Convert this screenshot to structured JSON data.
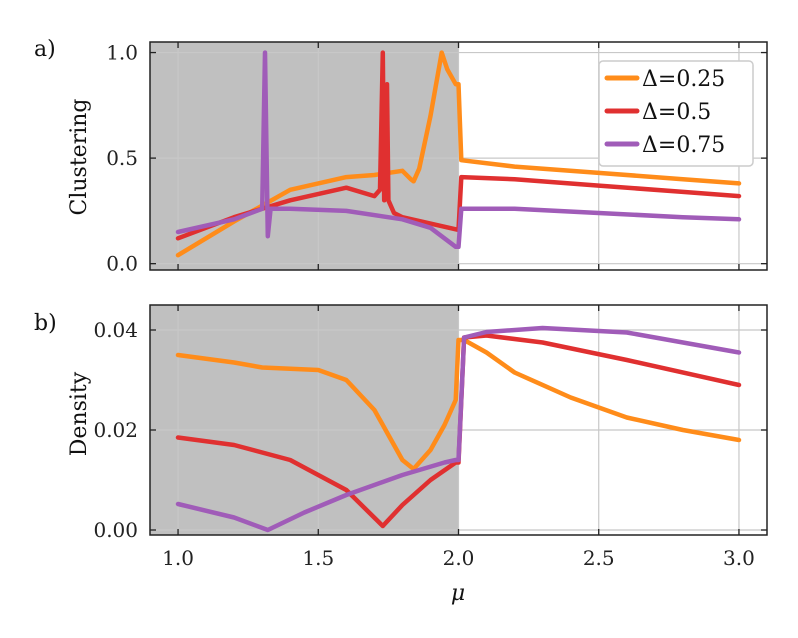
{
  "chart_data": [
    {
      "type": "line",
      "panel_label": "a)",
      "ylabel": "Clustering",
      "xlim": [
        0.9,
        3.1
      ],
      "ylim": [
        -0.03,
        1.05
      ],
      "xticks": [
        1.0,
        1.5,
        2.0,
        2.5,
        3.0
      ],
      "yticks": [
        0.0,
        0.5,
        1.0
      ],
      "ytick_labels": [
        "0.0",
        "0.5",
        "1.0"
      ],
      "shaded_region": [
        0.9,
        2.0
      ],
      "grid": true,
      "legend_position": "top-right",
      "series": [
        {
          "name": "Δ=0.25",
          "color": "#ff8c1a",
          "x": [
            1.0,
            1.2,
            1.4,
            1.6,
            1.7,
            1.8,
            1.83,
            1.84,
            1.86,
            1.9,
            1.94,
            1.96,
            1.99,
            2.0,
            2.01,
            2.2,
            2.5,
            2.8,
            3.0
          ],
          "y": [
            0.04,
            0.2,
            0.35,
            0.41,
            0.42,
            0.44,
            0.4,
            0.39,
            0.45,
            0.7,
            1.0,
            0.92,
            0.85,
            0.85,
            0.49,
            0.46,
            0.43,
            0.4,
            0.38
          ]
        },
        {
          "name": "Δ=0.5",
          "color": "#e03030",
          "x": [
            1.0,
            1.2,
            1.4,
            1.6,
            1.7,
            1.72,
            1.73,
            1.735,
            1.745,
            1.75,
            1.77,
            1.8,
            2.0,
            2.01,
            2.2,
            2.5,
            2.8,
            3.0
          ],
          "y": [
            0.12,
            0.22,
            0.3,
            0.36,
            0.32,
            0.35,
            1.0,
            0.3,
            0.85,
            0.3,
            0.24,
            0.22,
            0.16,
            0.41,
            0.4,
            0.37,
            0.34,
            0.32
          ]
        },
        {
          "name": "Δ=0.75",
          "color": "#a05cb8",
          "x": [
            1.0,
            1.2,
            1.3,
            1.31,
            1.32,
            1.33,
            1.4,
            1.6,
            1.8,
            1.9,
            1.99,
            2.0,
            2.01,
            2.2,
            2.5,
            2.8,
            3.0
          ],
          "y": [
            0.15,
            0.21,
            0.26,
            1.0,
            0.13,
            0.26,
            0.26,
            0.25,
            0.21,
            0.17,
            0.08,
            0.08,
            0.26,
            0.26,
            0.24,
            0.22,
            0.21
          ]
        }
      ]
    },
    {
      "type": "line",
      "panel_label": "b)",
      "ylabel": "Density",
      "xlabel": "μ",
      "xlim": [
        0.9,
        3.1
      ],
      "ylim": [
        -0.001,
        0.045
      ],
      "xticks": [
        1.0,
        1.5,
        2.0,
        2.5,
        3.0
      ],
      "xtick_labels": [
        "1.0",
        "1.5",
        "2.0",
        "2.5",
        "3.0"
      ],
      "yticks": [
        0.0,
        0.02,
        0.04
      ],
      "ytick_labels": [
        "0.00",
        "0.02",
        "0.04"
      ],
      "shaded_region": [
        0.9,
        2.0
      ],
      "grid": true,
      "series": [
        {
          "name": "Δ=0.25",
          "color": "#ff8c1a",
          "x": [
            1.0,
            1.2,
            1.3,
            1.5,
            1.6,
            1.7,
            1.75,
            1.8,
            1.84,
            1.9,
            1.95,
            1.99,
            2.0,
            2.02,
            2.1,
            2.2,
            2.4,
            2.6,
            2.8,
            3.0
          ],
          "y": [
            0.035,
            0.0335,
            0.0325,
            0.032,
            0.03,
            0.024,
            0.019,
            0.014,
            0.0122,
            0.016,
            0.021,
            0.026,
            0.038,
            0.038,
            0.0355,
            0.0315,
            0.0265,
            0.0225,
            0.02,
            0.018
          ]
        },
        {
          "name": "Δ=0.5",
          "color": "#e03030",
          "x": [
            1.0,
            1.2,
            1.4,
            1.6,
            1.73,
            1.8,
            1.9,
            1.99,
            2.0,
            2.02,
            2.1,
            2.3,
            2.6,
            3.0
          ],
          "y": [
            0.0185,
            0.017,
            0.014,
            0.008,
            0.0008,
            0.005,
            0.01,
            0.0135,
            0.0135,
            0.0385,
            0.0389,
            0.0375,
            0.034,
            0.029
          ]
        },
        {
          "name": "Δ=0.75",
          "color": "#a05cb8",
          "x": [
            1.0,
            1.2,
            1.32,
            1.45,
            1.6,
            1.8,
            1.95,
            1.99,
            2.0,
            2.02,
            2.1,
            2.3,
            2.6,
            3.0
          ],
          "y": [
            0.0052,
            0.0025,
            0.0,
            0.0035,
            0.007,
            0.011,
            0.0135,
            0.014,
            0.014,
            0.0385,
            0.0396,
            0.0404,
            0.0395,
            0.0355
          ]
        }
      ]
    }
  ],
  "legend": {
    "entries": [
      {
        "label": "Δ=0.25",
        "color": "#ff8c1a"
      },
      {
        "label": "Δ=0.5",
        "color": "#e03030"
      },
      {
        "label": "Δ=0.75",
        "color": "#a05cb8"
      }
    ]
  },
  "colors": {
    "shade": "#c0c0c0",
    "grid": "#c8c8c8",
    "axis": "#222222"
  }
}
